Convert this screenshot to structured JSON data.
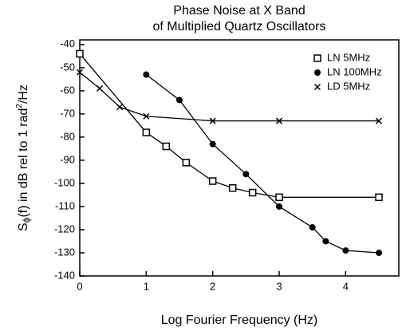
{
  "chart_data": {
    "type": "line",
    "title": [
      "Phase Noise at X Band",
      "of Multiplied Quartz Oscillators"
    ],
    "xlabel": "Log Fourier Frequency (Hz)",
    "ylabel": {
      "base": "S",
      "sub": "ϕ",
      "mid": "(f) in dB rel to 1 rad",
      "sup": "2",
      "end": "/Hz"
    },
    "xlim": [
      0,
      4.8
    ],
    "ylim": [
      -140,
      -38
    ],
    "xticks": [
      0,
      1,
      2,
      3,
      4
    ],
    "yticks": [
      -40,
      -50,
      -60,
      -70,
      -80,
      -90,
      -100,
      -110,
      -120,
      -130,
      -140
    ],
    "legend": "upper right",
    "series": [
      {
        "name": "LN 5MHz",
        "color": "#000000",
        "marker": "square",
        "x": [
          0,
          1,
          1.3,
          1.6,
          2,
          2.3,
          2.6,
          3,
          4.5
        ],
        "values": [
          -44,
          -78,
          -84,
          -91,
          -99,
          -102,
          -104,
          -106,
          -106
        ]
      },
      {
        "name": "LN 100MHz",
        "color": "#000000",
        "marker": "circle",
        "x": [
          1,
          1.5,
          2,
          2.5,
          3,
          3.5,
          3.7,
          4,
          4.5
        ],
        "values": [
          -53,
          -64,
          -83,
          -96,
          -110,
          -119,
          -125,
          -129,
          -130
        ]
      },
      {
        "name": "LD 5MHz",
        "color": "#000000",
        "marker": "x",
        "x": [
          0,
          0.3,
          0.6,
          1,
          2,
          3,
          4.5
        ],
        "values": [
          -52,
          -59,
          -67,
          -71,
          -73,
          -73,
          -73
        ]
      }
    ]
  }
}
